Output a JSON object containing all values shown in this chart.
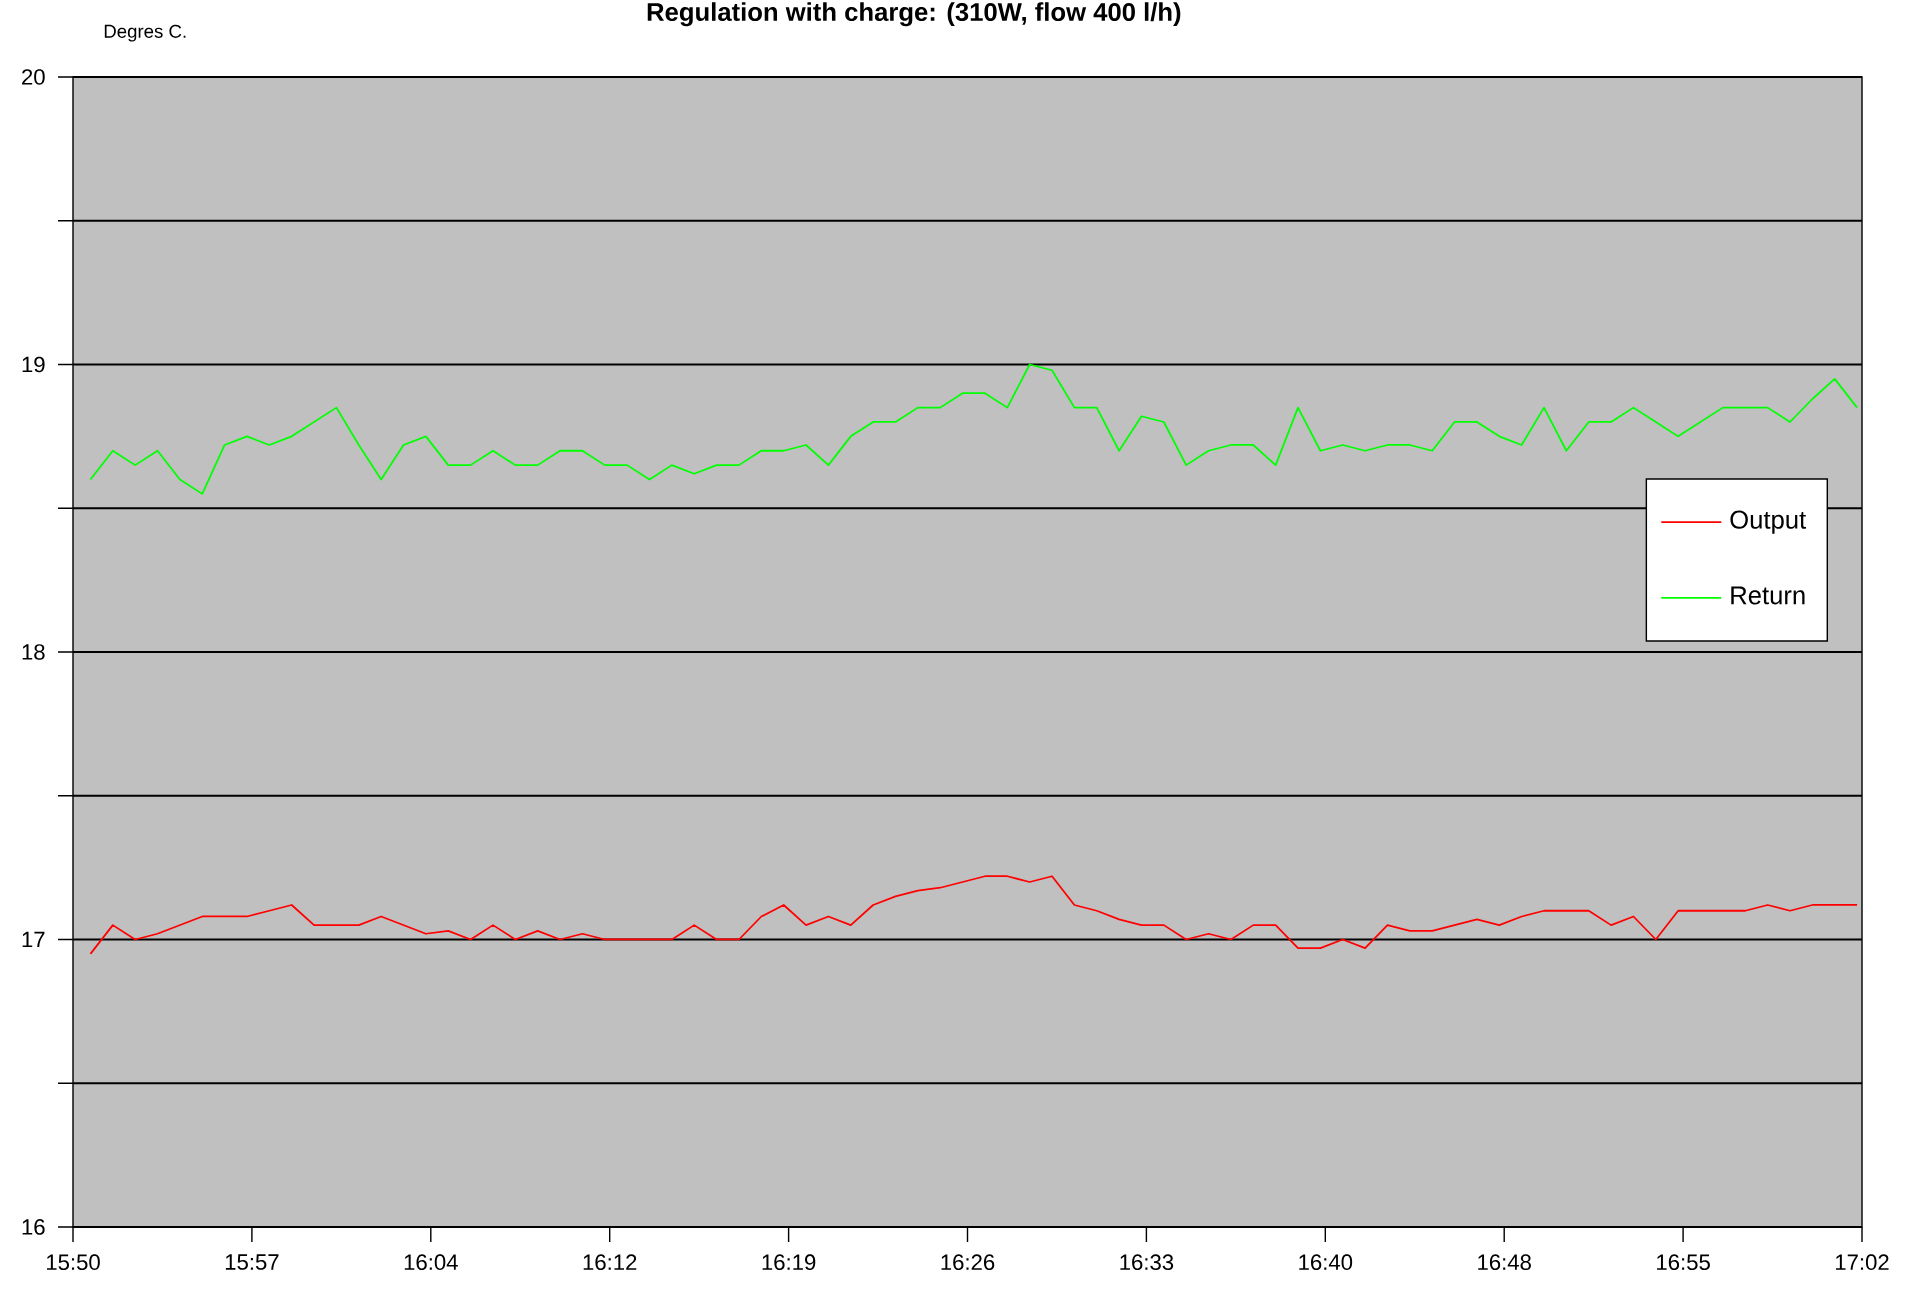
{
  "chart_data": {
    "type": "line",
    "title": "Regulation with charge:  (310W, flow 400 l/h)",
    "ylabel": "Degres C.",
    "x": [
      15.845,
      15.86,
      15.875,
      15.89,
      15.905,
      15.92,
      15.935,
      15.95,
      15.965,
      15.98,
      15.995,
      16.01,
      16.025,
      16.04,
      16.055,
      16.07,
      16.085,
      16.1,
      16.115,
      16.13,
      16.145,
      16.16,
      16.175,
      16.19,
      16.205,
      16.22,
      16.235,
      16.25,
      16.265,
      16.28,
      16.295,
      16.31,
      16.325,
      16.34,
      16.355,
      16.37,
      16.385,
      16.4,
      16.415,
      16.43,
      16.445,
      16.46,
      16.475,
      16.49,
      16.505,
      16.52,
      16.535,
      16.55,
      16.565,
      16.58,
      16.595,
      16.61,
      16.625,
      16.64,
      16.655,
      16.67,
      16.685,
      16.7,
      16.715,
      16.73,
      16.745,
      16.76,
      16.775,
      16.79,
      16.805,
      16.82,
      16.835,
      16.85,
      16.865,
      16.88,
      16.895,
      16.91,
      16.925,
      16.94,
      16.955,
      16.97,
      16.985,
      17.0,
      17.015,
      17.03
    ],
    "series": [
      {
        "name": "Output",
        "color": "#ff0000",
        "values": [
          16.95,
          17.05,
          17.0,
          17.02,
          17.05,
          17.08,
          17.08,
          17.08,
          17.1,
          17.12,
          17.05,
          17.05,
          17.05,
          17.08,
          17.05,
          17.02,
          17.03,
          17.0,
          17.05,
          17.0,
          17.03,
          17.0,
          17.02,
          17.0,
          17.0,
          17.0,
          17.0,
          17.05,
          17.0,
          17.0,
          17.08,
          17.12,
          17.05,
          17.08,
          17.05,
          17.12,
          17.15,
          17.17,
          17.18,
          17.2,
          17.22,
          17.22,
          17.2,
          17.22,
          17.12,
          17.1,
          17.07,
          17.05,
          17.05,
          17.0,
          17.02,
          17.0,
          17.05,
          17.05,
          16.97,
          16.97,
          17.0,
          16.97,
          17.05,
          17.03,
          17.03,
          17.05,
          17.07,
          17.05,
          17.08,
          17.1,
          17.1,
          17.1,
          17.05,
          17.08,
          17.0,
          17.1,
          17.1,
          17.1,
          17.1,
          17.12,
          17.1,
          17.12,
          17.12,
          17.12
        ]
      },
      {
        "name": "Return",
        "color": "#00ff00",
        "values": [
          18.6,
          18.7,
          18.65,
          18.7,
          18.6,
          18.55,
          18.72,
          18.75,
          18.72,
          18.75,
          18.8,
          18.85,
          18.72,
          18.6,
          18.72,
          18.75,
          18.65,
          18.65,
          18.7,
          18.65,
          18.65,
          18.7,
          18.7,
          18.65,
          18.65,
          18.6,
          18.65,
          18.62,
          18.65,
          18.65,
          18.7,
          18.7,
          18.72,
          18.65,
          18.75,
          18.8,
          18.8,
          18.85,
          18.85,
          18.9,
          18.9,
          18.85,
          19.0,
          18.98,
          18.85,
          18.85,
          18.7,
          18.82,
          18.8,
          18.65,
          18.7,
          18.72,
          18.72,
          18.65,
          18.85,
          18.7,
          18.72,
          18.7,
          18.72,
          18.72,
          18.7,
          18.8,
          18.8,
          18.75,
          18.72,
          18.85,
          18.7,
          18.8,
          18.8,
          18.85,
          18.8,
          18.75,
          18.8,
          18.85,
          18.85,
          18.85,
          18.8,
          18.88,
          18.95,
          18.85
        ]
      }
    ],
    "xlim": [
      15.8333,
      17.0333
    ],
    "xticks": [
      {
        "value": 15.8333,
        "label": "15:50"
      },
      {
        "value": 15.9533,
        "label": "15:57"
      },
      {
        "value": 16.0733,
        "label": "16:04"
      },
      {
        "value": 16.1933,
        "label": "16:12"
      },
      {
        "value": 16.3133,
        "label": "16:19"
      },
      {
        "value": 16.4333,
        "label": "16:26"
      },
      {
        "value": 16.5533,
        "label": "16:33"
      },
      {
        "value": 16.6733,
        "label": "16:40"
      },
      {
        "value": 16.7933,
        "label": "16:48"
      },
      {
        "value": 16.9133,
        "label": "16:55"
      },
      {
        "value": 17.0333,
        "label": "17:02"
      }
    ],
    "ylim": [
      16,
      20
    ],
    "yticks": [
      16,
      {
        "value": 16.5,
        "label": null
      },
      17,
      {
        "value": 17.5,
        "label": null
      },
      18,
      {
        "value": 18.5,
        "label": null
      },
      19,
      {
        "value": 19.5,
        "label": null
      },
      20
    ],
    "grid": "y",
    "legend": "right"
  }
}
